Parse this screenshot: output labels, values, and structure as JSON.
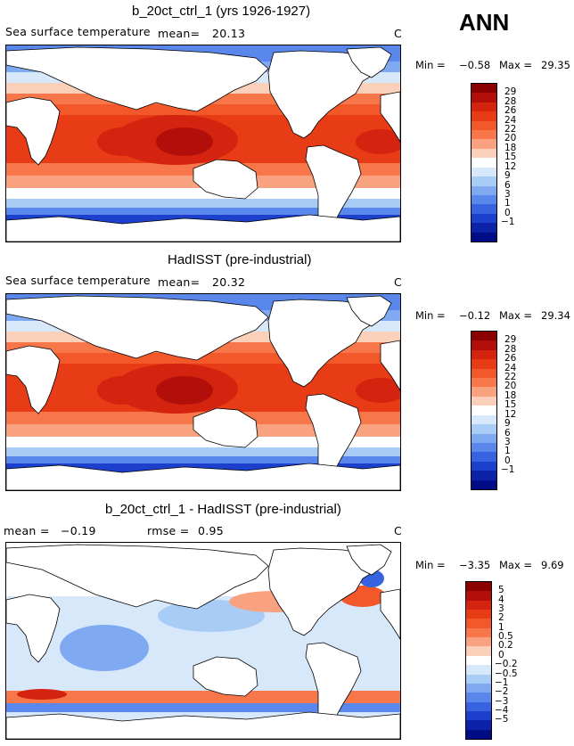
{
  "season": "ANN",
  "land_color": "#ffffff",
  "panels": [
    {
      "title": "b_20ct_ctrl_1 (yrs 1926-1927)",
      "variable": "Sea surface temperature",
      "mean_label": "mean=",
      "mean_value": "20.13",
      "units": "C",
      "min_label": "Min =",
      "min_value": "−0.58",
      "max_label": "Max =",
      "max_value": "29.35",
      "kind": "abs",
      "colorbar": {
        "labels": [
          "29",
          "28",
          "26",
          "24",
          "22",
          "20",
          "18",
          "15",
          "12",
          "9",
          "6",
          "3",
          "1",
          "0",
          "−1"
        ],
        "colors": [
          "#8b0000",
          "#b30f0a",
          "#d4230e",
          "#e83c16",
          "#f2582a",
          "#f7764a",
          "#f9a27f",
          "#fbd0ba",
          "#ffffff",
          "#d7e8fb",
          "#a9ccf6",
          "#7faaf1",
          "#5a87eb",
          "#3763e0",
          "#1c3fcc",
          "#0c22a9",
          "#000c85"
        ]
      }
    },
    {
      "title": "HadISST (pre-industrial)",
      "variable": "Sea surface temperature",
      "mean_label": "mean=",
      "mean_value": "20.32",
      "units": "C",
      "min_label": "Min =",
      "min_value": "−0.12",
      "max_label": "Max =",
      "max_value": "29.34",
      "kind": "abs",
      "colorbar": {
        "labels": [
          "29",
          "28",
          "26",
          "24",
          "22",
          "20",
          "18",
          "15",
          "12",
          "9",
          "6",
          "3",
          "1",
          "0",
          "−1"
        ],
        "colors": [
          "#8b0000",
          "#b30f0a",
          "#d4230e",
          "#e83c16",
          "#f2582a",
          "#f7764a",
          "#f9a27f",
          "#fbd0ba",
          "#ffffff",
          "#d7e8fb",
          "#a9ccf6",
          "#7faaf1",
          "#5a87eb",
          "#3763e0",
          "#1c3fcc",
          "#0c22a9",
          "#000c85"
        ]
      }
    },
    {
      "title": "b_20ct_ctrl_1 - HadISST (pre-industrial)",
      "mean_label": "mean =",
      "mean_value": "−0.19",
      "rmse_label": "rmse =",
      "rmse_value": "0.95",
      "units": "C",
      "min_label": "Min =",
      "min_value": "−3.35",
      "max_label": "Max =",
      "max_value": "9.69",
      "kind": "diff",
      "colorbar": {
        "labels": [
          "5",
          "4",
          "3",
          "2",
          "1",
          "0.5",
          "0.2",
          "0",
          "−0.2",
          "−0.5",
          "−1",
          "−2",
          "−3",
          "−4",
          "−5"
        ],
        "colors": [
          "#8b0000",
          "#b30f0a",
          "#d4230e",
          "#e83c16",
          "#f2582a",
          "#f7764a",
          "#f9a27f",
          "#fbd0ba",
          "#ffffff",
          "#d7e8fb",
          "#a9ccf6",
          "#7faaf1",
          "#5a87eb",
          "#3763e0",
          "#1c3fcc",
          "#0c22a9",
          "#000c85"
        ]
      }
    }
  ]
}
